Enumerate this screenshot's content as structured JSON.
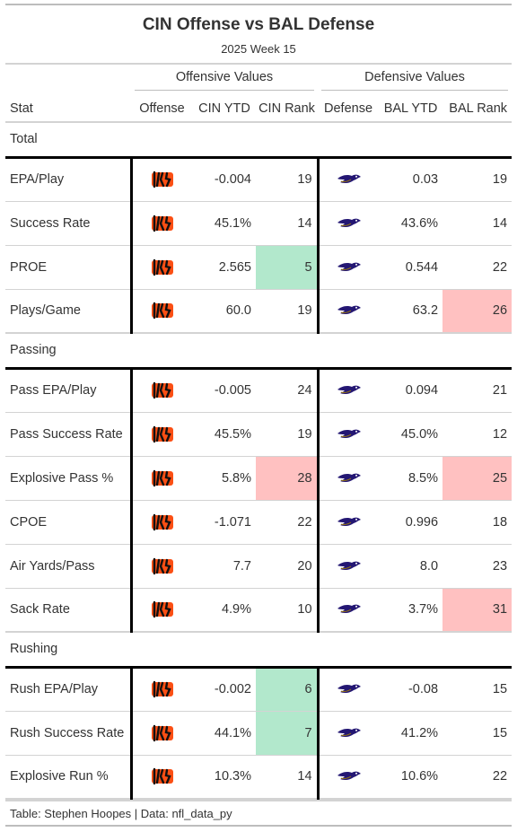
{
  "title": "CIN Offense vs BAL Defense",
  "subtitle": "2025 Week 15",
  "spanners": {
    "offense": "Offensive Values",
    "defense": "Defensive Values"
  },
  "columns": [
    "Stat",
    "Offense",
    "CIN YTD",
    "CIN Rank",
    "Defense",
    "BAL YTD",
    "BAL Rank"
  ],
  "icons": {
    "offense": "bengals-logo-icon",
    "defense": "ravens-logo-icon"
  },
  "colors": {
    "good": "#b2e8cc",
    "bad": "#ffc1c1",
    "bengals_orange": "#fb4f14",
    "ravens_purple": "#241773"
  },
  "groups": [
    {
      "name": "Total",
      "rows": [
        {
          "stat": "EPA/Play",
          "cin_ytd": "-0.004",
          "cin_rank": "19",
          "bal_ytd": "0.03",
          "bal_rank": "19",
          "cin_hl": "",
          "bal_hl": ""
        },
        {
          "stat": "Success Rate",
          "cin_ytd": "45.1%",
          "cin_rank": "14",
          "bal_ytd": "43.6%",
          "bal_rank": "14",
          "cin_hl": "",
          "bal_hl": ""
        },
        {
          "stat": "PROE",
          "cin_ytd": "2.565",
          "cin_rank": "5",
          "bal_ytd": "0.544",
          "bal_rank": "22",
          "cin_hl": "good",
          "bal_hl": ""
        },
        {
          "stat": "Plays/Game",
          "cin_ytd": "60.0",
          "cin_rank": "19",
          "bal_ytd": "63.2",
          "bal_rank": "26",
          "cin_hl": "",
          "bal_hl": "bad"
        }
      ]
    },
    {
      "name": "Passing",
      "rows": [
        {
          "stat": "Pass EPA/Play",
          "cin_ytd": "-0.005",
          "cin_rank": "24",
          "bal_ytd": "0.094",
          "bal_rank": "21",
          "cin_hl": "",
          "bal_hl": ""
        },
        {
          "stat": "Pass Success Rate",
          "cin_ytd": "45.5%",
          "cin_rank": "19",
          "bal_ytd": "45.0%",
          "bal_rank": "12",
          "cin_hl": "",
          "bal_hl": ""
        },
        {
          "stat": "Explosive Pass %",
          "cin_ytd": "5.8%",
          "cin_rank": "28",
          "bal_ytd": "8.5%",
          "bal_rank": "25",
          "cin_hl": "bad",
          "bal_hl": "bad"
        },
        {
          "stat": "CPOE",
          "cin_ytd": "-1.071",
          "cin_rank": "22",
          "bal_ytd": "0.996",
          "bal_rank": "18",
          "cin_hl": "",
          "bal_hl": ""
        },
        {
          "stat": "Air Yards/Pass",
          "cin_ytd": "7.7",
          "cin_rank": "20",
          "bal_ytd": "8.0",
          "bal_rank": "23",
          "cin_hl": "",
          "bal_hl": ""
        },
        {
          "stat": "Sack Rate",
          "cin_ytd": "4.9%",
          "cin_rank": "10",
          "bal_ytd": "3.7%",
          "bal_rank": "31",
          "cin_hl": "",
          "bal_hl": "bad"
        }
      ]
    },
    {
      "name": "Rushing",
      "rows": [
        {
          "stat": "Rush EPA/Play",
          "cin_ytd": "-0.002",
          "cin_rank": "6",
          "bal_ytd": "-0.08",
          "bal_rank": "15",
          "cin_hl": "good",
          "bal_hl": ""
        },
        {
          "stat": "Rush Success Rate",
          "cin_ytd": "44.1%",
          "cin_rank": "7",
          "bal_ytd": "41.2%",
          "bal_rank": "15",
          "cin_hl": "good",
          "bal_hl": ""
        },
        {
          "stat": "Explosive Run %",
          "cin_ytd": "10.3%",
          "cin_rank": "14",
          "bal_ytd": "10.6%",
          "bal_rank": "22",
          "cin_hl": "",
          "bal_hl": ""
        }
      ]
    }
  ],
  "footer": "Table: Stephen Hoopes | Data: nfl_data_py"
}
